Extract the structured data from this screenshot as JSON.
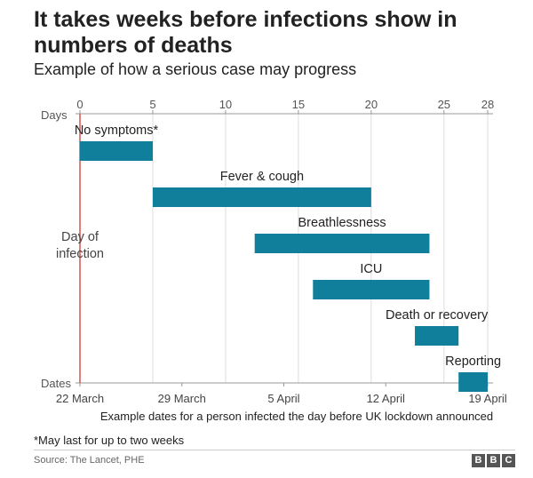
{
  "title": "It takes weeks before infections show in numbers of deaths",
  "subtitle": "Example of how a serious case may progress",
  "chart_data": {
    "type": "bar",
    "orientation": "horizontal-timeline",
    "x_axis_label": "Days",
    "x_ticks": [
      0,
      5,
      10,
      15,
      20,
      25,
      28
    ],
    "xlim": [
      0,
      28
    ],
    "date_axis_label": "Dates",
    "date_ticks": [
      {
        "day": 0,
        "label": "22 March"
      },
      {
        "day": 7,
        "label": "29 March"
      },
      {
        "day": 14,
        "label": "5 April"
      },
      {
        "day": 21,
        "label": "12 April"
      },
      {
        "day": 28,
        "label": "19 April"
      }
    ],
    "marker_label_line1": "Day of",
    "marker_label_line2": "infection",
    "marker_day": 0,
    "grid": true,
    "bar_color": "#0f7f9c",
    "series": [
      {
        "label": "No symptoms*",
        "start": 0,
        "end": 5
      },
      {
        "label": "Fever & cough",
        "start": 5,
        "end": 20
      },
      {
        "label": "Breathlessness",
        "start": 12,
        "end": 24
      },
      {
        "label": "ICU",
        "start": 16,
        "end": 24
      },
      {
        "label": "Death or recovery",
        "start": 23,
        "end": 26
      },
      {
        "label": "Reporting",
        "start": 26,
        "end": 28
      }
    ]
  },
  "caption": "Example dates for a person infected the day before UK lockdown announced",
  "footnote": "*May last for up to two weeks",
  "source": "Source: The Lancet, PHE",
  "logo": [
    "B",
    "B",
    "C"
  ]
}
